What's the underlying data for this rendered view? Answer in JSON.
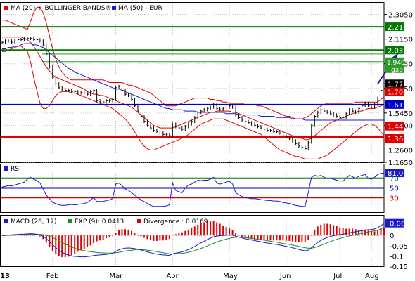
{
  "chart_data": [
    {
      "type": "line",
      "panel": "price",
      "legend": [
        {
          "label": "MA (20) + BOLLINGER BANDS®",
          "color": "#e00000"
        },
        {
          "label": "MA (50) - EUR",
          "color": "#1a1ad0"
        }
      ],
      "months": [
        "Feb",
        "Mar",
        "Apr",
        "May",
        "Jun",
        "Jul",
        "Aug"
      ],
      "year_label": "13",
      "ylim": [
        1.165,
        2.4
      ],
      "ticks": [
        "2.3050",
        "2.1150",
        "1.9250",
        "1.7350",
        "1.5450",
        "1.4500",
        "1.2600",
        "1.1650"
      ],
      "tick_values": [
        2.305,
        2.115,
        1.925,
        1.735,
        1.545,
        1.45,
        1.26,
        1.165
      ],
      "levels": [
        {
          "value": 2.21,
          "label": "2.21",
          "color": "#007a00"
        },
        {
          "value": 2.03,
          "label": "2.03",
          "color": "#007a00"
        },
        {
          "value": 1.61,
          "label": "1.61",
          "color": "#0000c0"
        },
        {
          "value": 1.36,
          "label": "1.36",
          "color": "#e00000"
        }
      ],
      "gap": {
        "value": 1.9409,
        "label": "1.9409",
        "text": "gap",
        "upper": 2.0,
        "color": "#2a9a2a"
      },
      "last_price": {
        "value": 1.77,
        "label": "1.77"
      },
      "ma_values": [
        {
          "value": 1.7097,
          "label": "1.7097",
          "color": "#e00000"
        },
        {
          "value": 1.4431,
          "label": "1.4431",
          "color": "#e00000"
        }
      ],
      "forecast_arrow": {
        "from_index": 119,
        "from_value": 1.77,
        "to_index": 126,
        "to_value": 2.0
      },
      "x_count": 122,
      "close": [
        2.09,
        2.1,
        2.1,
        2.09,
        2.1,
        2.11,
        2.11,
        2.12,
        2.12,
        2.12,
        2.11,
        2.11,
        2.1,
        2.07,
        2.0,
        1.9,
        1.82,
        1.77,
        1.74,
        1.73,
        1.72,
        1.72,
        1.71,
        1.71,
        1.7,
        1.7,
        1.7,
        1.69,
        1.71,
        1.72,
        1.64,
        1.63,
        1.63,
        1.64,
        1.64,
        1.65,
        1.74,
        1.75,
        1.72,
        1.69,
        1.68,
        1.65,
        1.6,
        1.56,
        1.52,
        1.48,
        1.45,
        1.43,
        1.41,
        1.4,
        1.39,
        1.38,
        1.38,
        1.37,
        1.46,
        1.44,
        1.43,
        1.42,
        1.44,
        1.46,
        1.48,
        1.51,
        1.55,
        1.56,
        1.57,
        1.58,
        1.59,
        1.61,
        1.58,
        1.57,
        1.58,
        1.59,
        1.6,
        1.59,
        1.53,
        1.51,
        1.49,
        1.48,
        1.47,
        1.46,
        1.45,
        1.44,
        1.43,
        1.42,
        1.41,
        1.41,
        1.4,
        1.4,
        1.39,
        1.37,
        1.36,
        1.35,
        1.33,
        1.31,
        1.29,
        1.28,
        1.27,
        1.32,
        1.45,
        1.52,
        1.55,
        1.57,
        1.56,
        1.55,
        1.54,
        1.53,
        1.52,
        1.51,
        1.51,
        1.54,
        1.57,
        1.56,
        1.55,
        1.58,
        1.6,
        1.62,
        1.6,
        1.59,
        1.61,
        1.66,
        1.72,
        1.77
      ],
      "ma20": [
        2.13,
        2.13,
        2.13,
        2.13,
        2.13,
        2.13,
        2.13,
        2.12,
        2.11,
        2.09,
        2.06,
        2.02,
        1.98,
        1.94,
        1.9,
        1.87,
        1.84,
        1.82,
        1.81,
        1.8,
        1.79,
        1.78,
        1.77,
        1.76,
        1.75,
        1.74,
        1.73,
        1.71,
        1.7,
        1.69,
        1.69,
        1.68,
        1.68,
        1.67,
        1.66,
        1.65,
        1.64,
        1.63,
        1.62,
        1.61,
        1.6,
        1.59,
        1.57,
        1.55,
        1.53,
        1.51,
        1.49,
        1.47,
        1.45,
        1.44,
        1.43,
        1.43,
        1.43,
        1.43,
        1.43,
        1.44,
        1.45,
        1.46,
        1.47,
        1.48,
        1.49,
        1.5,
        1.51,
        1.52,
        1.53,
        1.54,
        1.55,
        1.55,
        1.56,
        1.56,
        1.56,
        1.56,
        1.56,
        1.55,
        1.55,
        1.54,
        1.53,
        1.52,
        1.51,
        1.5,
        1.49,
        1.48,
        1.47,
        1.46,
        1.45,
        1.44,
        1.43,
        1.42,
        1.41,
        1.4,
        1.39,
        1.38,
        1.37,
        1.36,
        1.35,
        1.35,
        1.34,
        1.34,
        1.35,
        1.37,
        1.39,
        1.41,
        1.43,
        1.45,
        1.47,
        1.48,
        1.49,
        1.5,
        1.51,
        1.52,
        1.53,
        1.54,
        1.55,
        1.56,
        1.56,
        1.57,
        1.58,
        1.58,
        1.58,
        1.59,
        1.6,
        1.61
      ],
      "bb_upper": [
        2.26,
        2.26,
        2.25,
        2.24,
        2.23,
        2.22,
        2.21,
        2.2,
        2.19,
        2.25,
        2.32,
        2.36,
        2.36,
        2.32,
        2.24,
        2.14,
        2.04,
        1.96,
        1.9,
        1.86,
        1.83,
        1.81,
        1.8,
        1.8,
        1.8,
        1.8,
        1.8,
        1.8,
        1.8,
        1.8,
        1.8,
        1.8,
        1.8,
        1.79,
        1.78,
        1.78,
        1.78,
        1.78,
        1.78,
        1.77,
        1.76,
        1.76,
        1.75,
        1.74,
        1.73,
        1.72,
        1.71,
        1.7,
        1.68,
        1.66,
        1.64,
        1.62,
        1.6,
        1.6,
        1.6,
        1.6,
        1.61,
        1.62,
        1.63,
        1.64,
        1.65,
        1.66,
        1.66,
        1.66,
        1.66,
        1.66,
        1.65,
        1.65,
        1.64,
        1.64,
        1.63,
        1.63,
        1.62,
        1.62,
        1.62,
        1.62,
        1.62,
        1.61,
        1.61,
        1.61,
        1.61,
        1.6,
        1.6,
        1.59,
        1.58,
        1.57,
        1.56,
        1.55,
        1.54,
        1.53,
        1.52,
        1.52,
        1.51,
        1.5,
        1.5,
        1.5,
        1.51,
        1.52,
        1.54,
        1.56,
        1.58,
        1.6,
        1.61,
        1.62,
        1.62,
        1.62,
        1.62,
        1.62,
        1.62,
        1.62,
        1.62,
        1.62,
        1.63,
        1.63,
        1.63,
        1.63,
        1.63,
        1.63,
        1.63,
        1.63,
        1.65,
        1.67
      ],
      "bb_lower": [
        2.02,
        2.02,
        2.03,
        2.04,
        2.05,
        2.06,
        2.06,
        2.04,
        2.02,
        1.94,
        1.82,
        1.72,
        1.62,
        1.58,
        1.58,
        1.6,
        1.64,
        1.68,
        1.7,
        1.71,
        1.71,
        1.71,
        1.7,
        1.7,
        1.69,
        1.68,
        1.67,
        1.66,
        1.65,
        1.64,
        1.63,
        1.62,
        1.61,
        1.6,
        1.59,
        1.58,
        1.56,
        1.54,
        1.52,
        1.5,
        1.47,
        1.44,
        1.4,
        1.36,
        1.32,
        1.29,
        1.27,
        1.26,
        1.26,
        1.27,
        1.28,
        1.29,
        1.3,
        1.31,
        1.32,
        1.33,
        1.34,
        1.35,
        1.36,
        1.38,
        1.4,
        1.42,
        1.44,
        1.46,
        1.47,
        1.48,
        1.49,
        1.5,
        1.5,
        1.5,
        1.5,
        1.49,
        1.48,
        1.47,
        1.46,
        1.45,
        1.44,
        1.43,
        1.42,
        1.41,
        1.4,
        1.39,
        1.38,
        1.36,
        1.34,
        1.32,
        1.3,
        1.28,
        1.26,
        1.25,
        1.24,
        1.23,
        1.22,
        1.21,
        1.21,
        1.2,
        1.19,
        1.19,
        1.19,
        1.19,
        1.19,
        1.2,
        1.21,
        1.22,
        1.24,
        1.26,
        1.28,
        1.3,
        1.32,
        1.34,
        1.36,
        1.38,
        1.4,
        1.42,
        1.44,
        1.45,
        1.46,
        1.46,
        1.45,
        1.43,
        1.4,
        1.37
      ],
      "ma50": [
        2.04,
        2.04,
        2.05,
        2.05,
        2.06,
        2.06,
        2.07,
        2.08,
        2.08,
        2.08,
        2.07,
        2.07,
        2.06,
        2.05,
        2.03,
        2.01,
        1.99,
        1.97,
        1.95,
        1.93,
        1.91,
        1.89,
        1.88,
        1.86,
        1.85,
        1.84,
        1.83,
        1.82,
        1.81,
        1.8,
        1.79,
        1.78,
        1.77,
        1.76,
        1.75,
        1.74,
        1.73,
        1.73,
        1.72,
        1.71,
        1.7,
        1.69,
        1.68,
        1.67,
        1.66,
        1.65,
        1.64,
        1.63,
        1.62,
        1.61,
        1.6,
        1.59,
        1.58,
        1.58,
        1.57,
        1.57,
        1.57,
        1.57,
        1.56,
        1.56,
        1.56,
        1.56,
        1.55,
        1.55,
        1.55,
        1.55,
        1.55,
        1.55,
        1.55,
        1.55,
        1.55,
        1.54,
        1.54,
        1.54,
        1.54,
        1.53,
        1.53,
        1.53,
        1.53,
        1.53,
        1.53,
        1.53,
        1.52,
        1.52,
        1.52,
        1.52,
        1.52,
        1.51,
        1.51,
        1.51,
        1.51,
        1.51,
        1.5,
        1.5,
        1.5,
        1.5,
        1.49,
        1.49,
        1.49,
        1.49,
        1.49,
        1.49,
        1.49,
        1.49,
        1.49,
        1.49,
        1.49,
        1.49,
        1.49,
        1.49,
        1.49,
        1.49,
        1.49,
        1.49,
        1.49,
        1.49,
        1.49,
        1.49,
        1.49,
        1.49,
        1.49,
        1.49
      ]
    },
    {
      "type": "line",
      "panel": "rsi",
      "legend": [
        {
          "label": "RSI",
          "color": "#1a1ad0"
        }
      ],
      "ylim": [
        0,
        100
      ],
      "ticks": [
        "70",
        "50",
        "30"
      ],
      "tick_values": [
        70,
        50,
        30
      ],
      "levels": [
        {
          "value": 70,
          "color": "#007a00"
        },
        {
          "value": 50,
          "color": "#0000c0"
        },
        {
          "value": 30,
          "color": "#e00000"
        }
      ],
      "last_value": {
        "value": 81.05,
        "label": "81.05"
      },
      "values": [
        52,
        53,
        55,
        54,
        56,
        58,
        60,
        62,
        68,
        72,
        68,
        65,
        60,
        48,
        35,
        28,
        20,
        18,
        15,
        14,
        14,
        15,
        16,
        15,
        16,
        17,
        18,
        20,
        25,
        30,
        22,
        22,
        22,
        24,
        25,
        28,
        58,
        60,
        55,
        48,
        45,
        40,
        35,
        30,
        25,
        22,
        18,
        14,
        12,
        12,
        12,
        12,
        13,
        15,
        60,
        45,
        42,
        40,
        50,
        56,
        58,
        62,
        66,
        65,
        66,
        66,
        68,
        72,
        60,
        58,
        60,
        62,
        64,
        58,
        40,
        36,
        32,
        30,
        29,
        28,
        28,
        27,
        26,
        25,
        24,
        24,
        23,
        23,
        22,
        20,
        19,
        18,
        16,
        14,
        13,
        12,
        12,
        40,
        72,
        76,
        74,
        76,
        72,
        70,
        70,
        68,
        66,
        64,
        64,
        70,
        76,
        73,
        70,
        74,
        76,
        78,
        70,
        68,
        72,
        78,
        80,
        81.05
      ]
    },
    {
      "type": "bar",
      "panel": "macd",
      "legend": [
        {
          "label": "MACD (26, 12)",
          "color": "#1a1ad0"
        },
        {
          "label": "EXP (9): 0.0413",
          "color": "#1f8a1f"
        },
        {
          "label": "Divergence : 0.0169",
          "color": "#e00000"
        }
      ],
      "ylim": [
        -0.15,
        0.1
      ],
      "ticks": [
        "0.05",
        "0",
        "-0.05",
        "-0.1",
        "-0.15"
      ],
      "tick_values": [
        0.05,
        0,
        -0.05,
        -0.1,
        -0.15
      ],
      "last_value": {
        "value": 0.06,
        "label": "0.06"
      },
      "macd": [
        0.0,
        0.001,
        0.002,
        0.003,
        0.004,
        0.005,
        0.006,
        0.007,
        0.008,
        0.009,
        0.008,
        0.006,
        0.003,
        -0.004,
        -0.015,
        -0.03,
        -0.045,
        -0.06,
        -0.072,
        -0.082,
        -0.09,
        -0.096,
        -0.1,
        -0.102,
        -0.103,
        -0.104,
        -0.104,
        -0.103,
        -0.101,
        -0.098,
        -0.096,
        -0.095,
        -0.094,
        -0.092,
        -0.09,
        -0.087,
        -0.078,
        -0.07,
        -0.065,
        -0.062,
        -0.061,
        -0.062,
        -0.064,
        -0.067,
        -0.071,
        -0.075,
        -0.08,
        -0.084,
        -0.088,
        -0.091,
        -0.093,
        -0.095,
        -0.096,
        -0.097,
        -0.09,
        -0.086,
        -0.083,
        -0.08,
        -0.075,
        -0.069,
        -0.062,
        -0.054,
        -0.045,
        -0.036,
        -0.028,
        -0.02,
        -0.013,
        -0.006,
        -0.003,
        -0.001,
        0.0,
        0.001,
        0.002,
        0.001,
        -0.004,
        -0.008,
        -0.012,
        -0.016,
        -0.019,
        -0.022,
        -0.025,
        -0.028,
        -0.031,
        -0.034,
        -0.037,
        -0.039,
        -0.042,
        -0.044,
        -0.047,
        -0.05,
        -0.053,
        -0.056,
        -0.06,
        -0.064,
        -0.068,
        -0.072,
        -0.075,
        -0.072,
        -0.06,
        -0.046,
        -0.034,
        -0.024,
        -0.016,
        -0.01,
        -0.005,
        -0.001,
        0.002,
        0.004,
        0.006,
        0.009,
        0.013,
        0.016,
        0.018,
        0.021,
        0.024,
        0.027,
        0.028,
        0.029,
        0.032,
        0.038,
        0.048,
        0.058
      ],
      "signal": [
        0.0,
        0.0,
        0.001,
        0.001,
        0.002,
        0.002,
        0.003,
        0.004,
        0.004,
        0.005,
        0.005,
        0.005,
        0.005,
        0.004,
        0.001,
        -0.004,
        -0.01,
        -0.018,
        -0.026,
        -0.034,
        -0.042,
        -0.049,
        -0.056,
        -0.062,
        -0.067,
        -0.071,
        -0.074,
        -0.077,
        -0.079,
        -0.081,
        -0.083,
        -0.084,
        -0.085,
        -0.086,
        -0.086,
        -0.086,
        -0.084,
        -0.082,
        -0.079,
        -0.076,
        -0.074,
        -0.072,
        -0.07,
        -0.069,
        -0.069,
        -0.07,
        -0.072,
        -0.074,
        -0.076,
        -0.079,
        -0.082,
        -0.084,
        -0.087,
        -0.089,
        -0.09,
        -0.089,
        -0.088,
        -0.087,
        -0.085,
        -0.082,
        -0.078,
        -0.074,
        -0.069,
        -0.063,
        -0.057,
        -0.051,
        -0.044,
        -0.038,
        -0.032,
        -0.027,
        -0.022,
        -0.018,
        -0.014,
        -0.011,
        -0.009,
        -0.009,
        -0.009,
        -0.01,
        -0.012,
        -0.014,
        -0.016,
        -0.018,
        -0.021,
        -0.023,
        -0.026,
        -0.028,
        -0.031,
        -0.033,
        -0.036,
        -0.039,
        -0.041,
        -0.044,
        -0.047,
        -0.05,
        -0.053,
        -0.057,
        -0.06,
        -0.062,
        -0.062,
        -0.059,
        -0.054,
        -0.048,
        -0.042,
        -0.036,
        -0.03,
        -0.024,
        -0.019,
        -0.014,
        -0.01,
        -0.006,
        -0.002,
        0.001,
        0.004,
        0.008,
        0.011,
        0.014,
        0.017,
        0.02,
        0.023,
        0.026,
        0.031,
        0.041
      ]
    }
  ]
}
